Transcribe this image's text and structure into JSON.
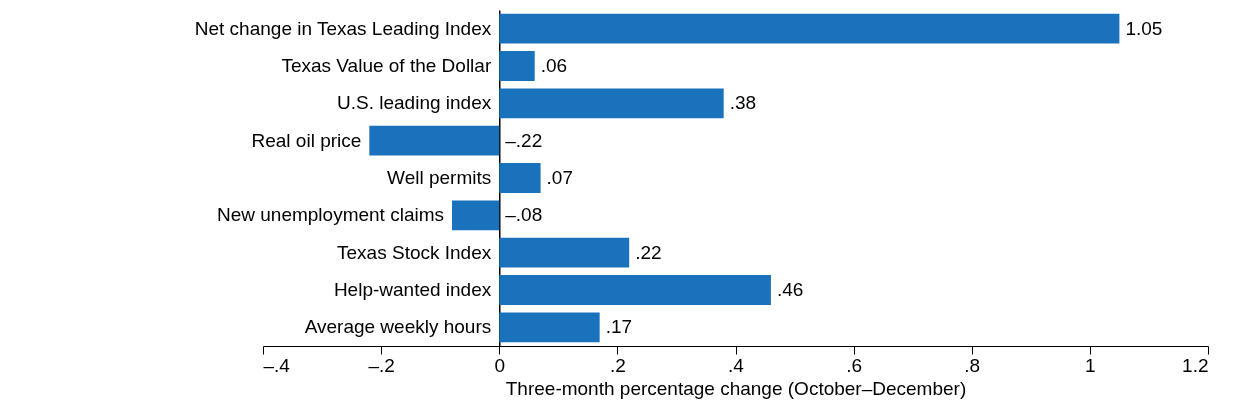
{
  "chart_data": {
    "type": "bar",
    "orientation": "horizontal",
    "xlabel": "Three-month percentage change (October–December)",
    "categories": [
      "Net change in Texas Leading Index",
      "Texas Value of the Dollar",
      "U.S. leading index",
      "Real oil price",
      "Well permits",
      "New unemployment claims",
      "Texas Stock Index",
      "Help-wanted index",
      "Average weekly hours"
    ],
    "values": [
      1.05,
      0.06,
      0.38,
      -0.22,
      0.07,
      -0.08,
      0.22,
      0.46,
      0.17
    ],
    "value_labels": [
      "1.05",
      ".06",
      ".38",
      "–.22",
      ".07",
      "–.08",
      ".22",
      ".46",
      ".17"
    ],
    "color": "#1a72bd",
    "xlim": [
      -0.4,
      1.2
    ],
    "xticks": [
      {
        "value": -0.4,
        "label": "–.4"
      },
      {
        "value": -0.2,
        "label": "–.2"
      },
      0,
      {
        "value": 0.2,
        "label": ".2"
      },
      {
        "value": 0.4,
        "label": ".4"
      },
      {
        "value": 0.6,
        "label": ".6"
      },
      {
        "value": 0.8,
        "label": ".8"
      },
      1,
      {
        "value": 1.2,
        "label": "1.2"
      }
    ]
  }
}
